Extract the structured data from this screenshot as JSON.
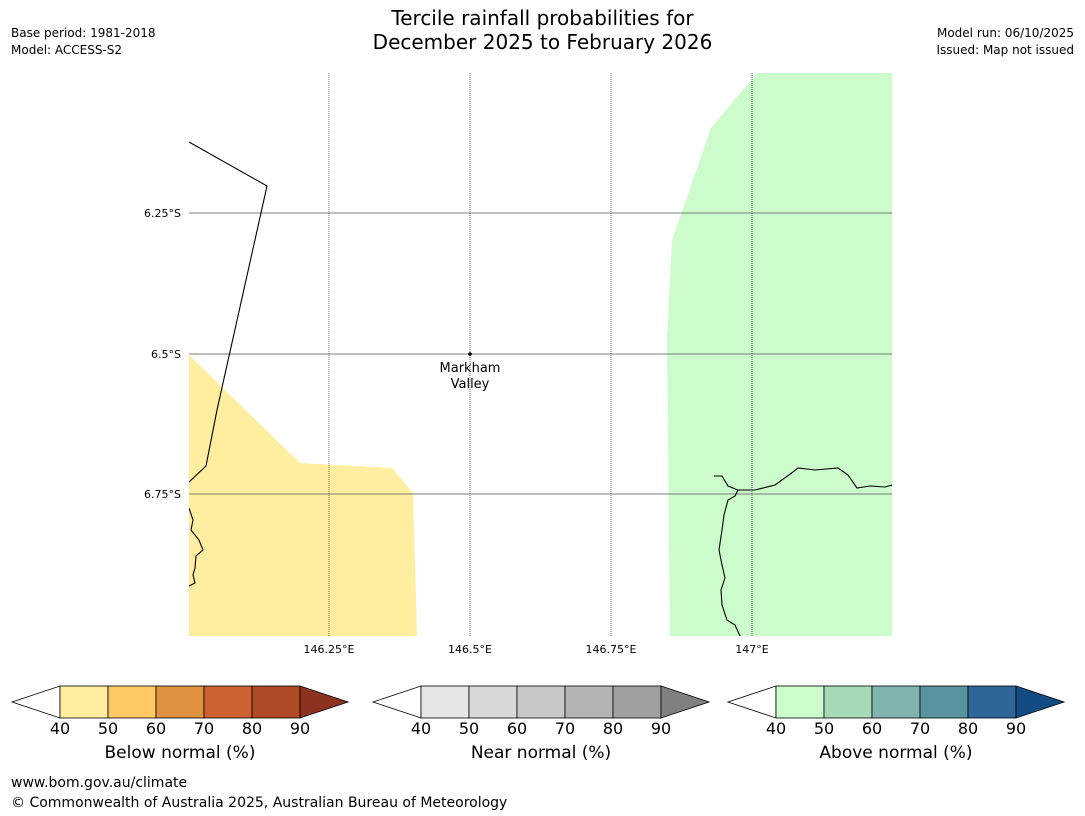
{
  "header": {
    "title_line1": "Tercile rainfall probabilities for",
    "title_line2": "December 2025 to February 2026",
    "base_period": "Base period: 1981-2018",
    "model": "Model: ACCESS-S2",
    "model_run": "Model run: 06/10/2025",
    "issued": "Issued: Map not issued"
  },
  "map": {
    "lat_labels": [
      "6.25°S",
      "6.5°S",
      "6.75°S"
    ],
    "lon_labels": [
      "146.25°E",
      "146.5°E",
      "146.75°E",
      "147°E"
    ],
    "place_name_line1": "Markham",
    "place_name_line2": "Valley",
    "colors": {
      "below_fill": "#ffeda0",
      "above_fill": "#ccfccc",
      "gridline": "#555555",
      "coast": "#000000"
    }
  },
  "legends": [
    {
      "label": "Below normal (%)",
      "ticks": [
        "40",
        "50",
        "60",
        "70",
        "80",
        "90"
      ],
      "colors": [
        "#ffeda0",
        "#fec962",
        "#e0913f",
        "#cc6232",
        "#b04a27",
        "#8c3320"
      ]
    },
    {
      "label": "Near normal (%)",
      "ticks": [
        "40",
        "50",
        "60",
        "70",
        "80",
        "90"
      ],
      "colors": [
        "#e6e6e6",
        "#d8d8d8",
        "#c8c8c8",
        "#b4b4b4",
        "#a0a0a0",
        "#808080"
      ]
    },
    {
      "label": "Above normal (%)",
      "ticks": [
        "40",
        "50",
        "60",
        "70",
        "80",
        "90"
      ],
      "colors": [
        "#ccfccc",
        "#a6d9b8",
        "#80b5ae",
        "#5a93a0",
        "#2e6699",
        "#134c84"
      ]
    }
  ],
  "footer": {
    "url": "www.bom.gov.au/climate",
    "copyright": "© Commonwealth of Australia 2025, Australian Bureau of Meteorology"
  }
}
